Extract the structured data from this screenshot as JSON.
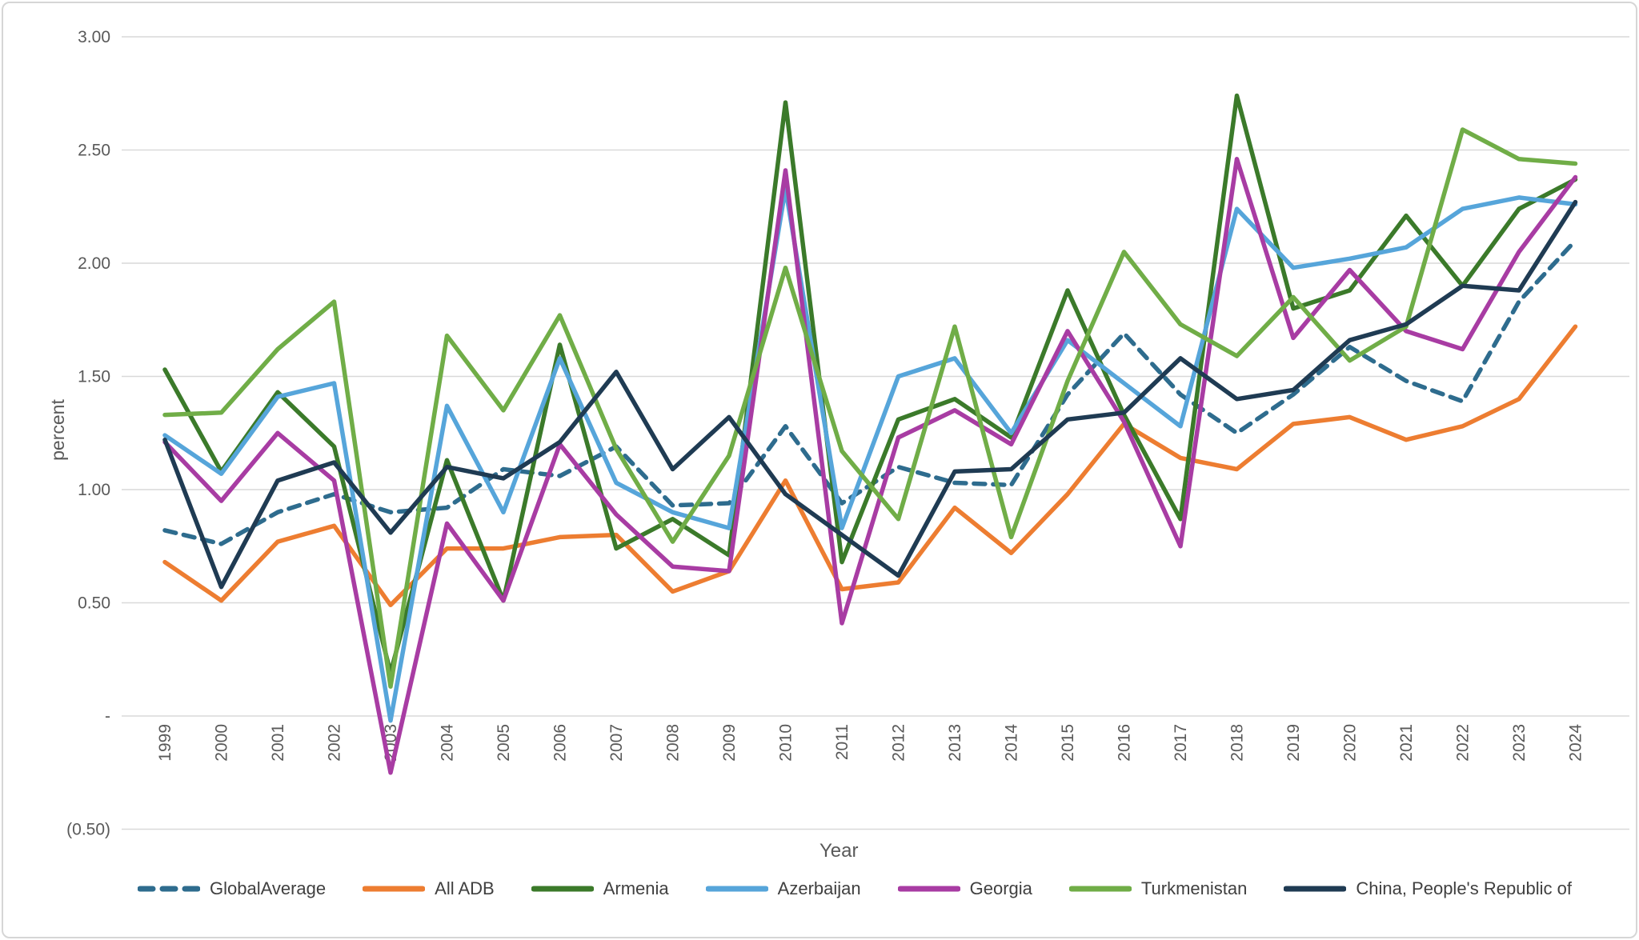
{
  "chart_data": {
    "type": "line",
    "title": "",
    "xlabel": "Year",
    "ylabel": "percent",
    "grid": true,
    "legend_position": "bottom",
    "ylim": [
      -0.5,
      3.0
    ],
    "y_ticks": [
      {
        "value": 3.0,
        "label": "3.00"
      },
      {
        "value": 2.5,
        "label": "2.50"
      },
      {
        "value": 2.0,
        "label": "2.00"
      },
      {
        "value": 1.5,
        "label": "1.50"
      },
      {
        "value": 1.0,
        "label": "1.00"
      },
      {
        "value": 0.5,
        "label": "0.50"
      },
      {
        "value": 0.0,
        "label": "-"
      },
      {
        "value": -0.5,
        "label": "(0.50)"
      }
    ],
    "categories": [
      "1999",
      "2000",
      "2001",
      "2002",
      "2003",
      "2004",
      "2005",
      "2006",
      "2007",
      "2008",
      "2009",
      "2010",
      "2011",
      "2012",
      "2013",
      "2014",
      "2015",
      "2016",
      "2017",
      "2018",
      "2019",
      "2020",
      "2021",
      "2022",
      "2023",
      "2024"
    ],
    "series": [
      {
        "name": "GlobalAverage",
        "color": "#2E6C8E",
        "dashed": true,
        "values": [
          0.82,
          0.76,
          0.9,
          0.98,
          0.9,
          0.92,
          1.09,
          1.06,
          1.19,
          0.93,
          0.94,
          1.28,
          0.94,
          1.1,
          1.03,
          1.02,
          1.42,
          1.69,
          1.42,
          1.25,
          1.42,
          1.63,
          1.48,
          1.39,
          1.83,
          2.1
        ]
      },
      {
        "name": "All ADB",
        "color": "#ED7D31",
        "dashed": false,
        "values": [
          0.68,
          0.51,
          0.77,
          0.84,
          0.49,
          0.74,
          0.74,
          0.79,
          0.8,
          0.55,
          0.64,
          1.04,
          0.56,
          0.59,
          0.92,
          0.72,
          0.98,
          1.29,
          1.14,
          1.09,
          1.29,
          1.32,
          1.22,
          1.28,
          1.4,
          1.72
        ]
      },
      {
        "name": "Armenia",
        "color": "#3B7A2A",
        "dashed": false,
        "values": [
          1.53,
          1.08,
          1.43,
          1.19,
          0.19,
          1.13,
          0.51,
          1.64,
          0.74,
          0.87,
          0.71,
          2.71,
          0.68,
          1.31,
          1.4,
          1.23,
          1.88,
          1.33,
          0.87,
          2.74,
          1.8,
          1.88,
          2.21,
          1.9,
          2.24,
          2.37
        ]
      },
      {
        "name": "Azerbaijan",
        "color": "#56A5DA",
        "dashed": false,
        "values": [
          1.24,
          1.07,
          1.41,
          1.47,
          -0.02,
          1.37,
          0.9,
          1.58,
          1.03,
          0.9,
          0.83,
          2.33,
          0.83,
          1.5,
          1.58,
          1.25,
          1.66,
          1.47,
          1.28,
          2.24,
          1.98,
          2.02,
          2.07,
          2.24,
          2.29,
          2.26
        ]
      },
      {
        "name": "Georgia",
        "color": "#A83CA3",
        "dashed": false,
        "values": [
          1.21,
          0.95,
          1.25,
          1.04,
          -0.25,
          0.85,
          0.51,
          1.2,
          0.89,
          0.66,
          0.64,
          2.41,
          0.41,
          1.23,
          1.35,
          1.2,
          1.7,
          1.3,
          0.75,
          2.46,
          1.67,
          1.97,
          1.7,
          1.62,
          2.05,
          2.38
        ]
      },
      {
        "name": "Turkmenistan",
        "color": "#70AD47",
        "dashed": false,
        "values": [
          1.33,
          1.34,
          1.62,
          1.83,
          0.13,
          1.68,
          1.35,
          1.77,
          1.18,
          0.77,
          1.15,
          1.98,
          1.17,
          0.87,
          1.72,
          0.79,
          1.48,
          2.05,
          1.73,
          1.59,
          1.85,
          1.57,
          1.72,
          2.59,
          2.46,
          2.44
        ]
      },
      {
        "name": "China, People's Republic of",
        "color": "#1F3B53",
        "dashed": false,
        "values": [
          1.22,
          0.57,
          1.04,
          1.12,
          0.81,
          1.1,
          1.05,
          1.21,
          1.52,
          1.09,
          1.32,
          0.98,
          0.8,
          0.62,
          1.08,
          1.09,
          1.31,
          1.34,
          1.58,
          1.4,
          1.44,
          1.66,
          1.73,
          1.9,
          1.88,
          2.27
        ]
      }
    ]
  }
}
